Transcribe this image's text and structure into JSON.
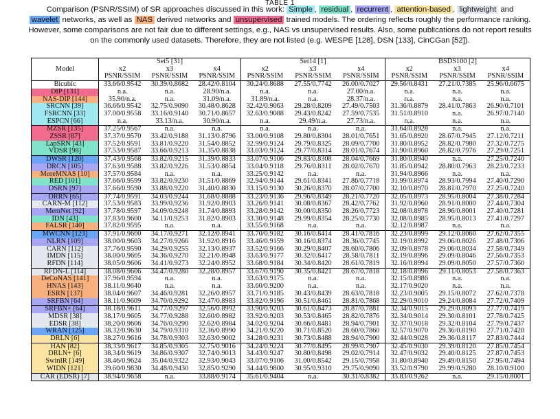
{
  "caption": {
    "table_label": "TABLE 1",
    "line1_pre": "Comparison (PSNR/SSIM) of SR approaches discussed in this work:",
    "tags": [
      {
        "label": "Simple",
        "color": "#9ee8f2"
      },
      {
        "label": "residual",
        "color": "#7fe3c9"
      },
      {
        "label": "recurrent",
        "color": "#a6a6f2"
      },
      {
        "label": "attention-based",
        "color": "#fbe3a0"
      },
      {
        "label": "lightweight",
        "color": "#e2e8ee"
      }
    ],
    "and1": "and",
    "wavelet": {
      "label": "wavelet",
      "color": "#6aa4f4"
    },
    "networks_as_well_as": "networks, as well as",
    "nas": {
      "label": "NAS",
      "color": "#f9b07f"
    },
    "derived_and": "derived networks and",
    "unsupervised": {
      "label": "unsupervised",
      "color": "#f16b8f"
    },
    "line2_post": "trained models. The ordering reflects roughly the performance ranking.",
    "line3": "However, some comparisons are not fair due to different settings, e.g., NAS vs unsupervised results. Also, some publications do not report results",
    "line4": "on the commonly used datasets. Therefore, they are not listed (e.g. WESPE [128], DSN [133], CinCGan [52])."
  },
  "table": {
    "model_header": "Model",
    "datasets": [
      "Set5 [31]",
      "Set14 [1]",
      "BSDS100 [2]"
    ],
    "scales": [
      "x2",
      "x3",
      "x4"
    ],
    "metric": "PSNR/SSIM",
    "colors": {
      "simple": "#9ee8f2",
      "residual": "#7fe3c9",
      "recurrent": "#a6a6f2",
      "attention": "#fbe3a0",
      "lightweight": "#e2e8ee",
      "wavelet": "#6aa4f4",
      "nas": "#f9b07f",
      "unsupervised": "#f16b8f",
      "none": "#ffffff"
    },
    "rows": [
      {
        "model": "Bicubic",
        "cat": "none",
        "sep": false,
        "vals": [
          "33.66/0.9542",
          "30.39/0.8682",
          "28.42/0.8104",
          "30.24/0.8688",
          "27.55/0.7742",
          "26.00/0.7027",
          "29.56/0.8431",
          "27.21/0.7385",
          "25.96/0.6675"
        ]
      },
      {
        "model": "DIP [131]",
        "cat": "unsupervised",
        "sep": false,
        "vals": [
          "n.a.",
          "n.a.",
          "28.90/n.a.",
          "n.a.",
          "n.a.",
          "27.00/n.a.",
          "n.a.",
          "n.a.",
          "n.a."
        ]
      },
      {
        "model": "NAS-DIP [144]",
        "cat": "nas",
        "sep": false,
        "vals": [
          "35.90/n.a.",
          "n.a.",
          "31.09/n.a.",
          "31.89/n.a.",
          "n.a.",
          "28.37/n.a.",
          "n.a.",
          "n.a.",
          "n.a."
        ]
      },
      {
        "model": "SRCNN [39]",
        "cat": "simple",
        "sep": false,
        "vals": [
          "36.66/0.9542",
          "32.75/0.9090",
          "30.48/0.8628",
          "32.42/0.9063",
          "29.28/0.8209",
          "27.49/0.7503",
          "31.36/0.8879",
          "28.41/0.7863",
          "26.90/0.7101"
        ]
      },
      {
        "model": "FSRCNN [33]",
        "cat": "simple",
        "sep": false,
        "vals": [
          "37.00/0.9558",
          "33.16/0.9140",
          "30.71/0.8657",
          "32.63/0.9088",
          "29.43/0.8242",
          "27.59/0.7535",
          "31.51/0.8910",
          "n.a.",
          "26.97/0.7140"
        ]
      },
      {
        "model": "ESPCN [66]",
        "cat": "simple",
        "sep": false,
        "vals": [
          "n.a.",
          "33.13/n.a.",
          "30.90/n.a.",
          "n.a.",
          "29.49/n.a.",
          "27.73/n.a.",
          "n.a.",
          "n.a.",
          "n.a."
        ]
      },
      {
        "model": "MZSR [135]",
        "cat": "unsupervised",
        "sep": true,
        "vals": [
          "37.25/0.9567",
          "n.a.",
          "n.a.",
          "n.a.",
          "n.a.",
          "n.a.",
          "31.64/0.8928",
          "n.a.",
          "n.a."
        ]
      },
      {
        "model": "ZSSR [87]",
        "cat": "unsupervised",
        "sep": false,
        "vals": [
          "37.37/0.9570",
          "33.42/0.9188",
          "31.13/0.8796",
          "33.00/0.9108",
          "29.80/0.8304",
          "28.01/0.7651",
          "31.65/0.8920",
          "28.67/0.7945",
          "27.12/0.7211"
        ]
      },
      {
        "model": "LapSRN [43]",
        "cat": "residual",
        "sep": false,
        "vals": [
          "37.52/0.9591",
          "33.81/0.9220",
          "31.54/0.8852",
          "32.99/0.9124",
          "29.79/0.8325",
          "28.09/0.7700",
          "31.80/0.8952",
          "28.82/0.7980",
          "27.32/0.7275"
        ]
      },
      {
        "model": "VDSR [98]",
        "cat": "residual",
        "sep": false,
        "vals": [
          "37.53/0.9587",
          "33.66/0.9213",
          "31.35/0.8838",
          "33.03/0.9124",
          "29.77/0.8314",
          "28.01/0.7674",
          "31.90/0.8960",
          "28.82/0.7976",
          "27.29/0.7251"
        ]
      },
      {
        "model": "DWSR [120]",
        "cat": "wavelet",
        "sep": true,
        "vals": [
          "37.43/0.9568",
          "33.82/0.9215",
          "31.39/0.8833",
          "33.07/0.9106",
          "29.83/0.8308",
          "28.04/0.7669",
          "31.80/0.8940",
          "n.a.",
          "27.25/0.7240"
        ]
      },
      {
        "model": "DRCN [105]",
        "cat": "recurrent",
        "sep": false,
        "vals": [
          "37.63/0.9588",
          "33.82/0.9226",
          "31.53/0.8854",
          "33.04/0.9118",
          "29.76/0.8311",
          "28.02/0.7670",
          "31.85/0.8942",
          "28.80/0.7963",
          "28.23/0.7233"
        ]
      },
      {
        "model": "MoreMNAS [10]",
        "cat": "nas",
        "sep": false,
        "vals": [
          "37.57/0.9584",
          "n.a.",
          "n.a.",
          "33.25/0.9142",
          "n.a.",
          "n.a.",
          "31.94/0.8966",
          "n.a.",
          "n.a."
        ]
      },
      {
        "model": "RED [101]",
        "cat": "residual",
        "sep": false,
        "vals": [
          "37.66/0.9599",
          "33.82/0.9230",
          "31.51/0.8869",
          "32.94/0.9144",
          "29.61/0.8341",
          "27.86/0.7718",
          "31.99/0.8974",
          "28.93/0.7994",
          "27.40/0.7290"
        ]
      },
      {
        "model": "DSRN [97]",
        "cat": "recurrent",
        "sep": false,
        "vals": [
          "37.66/0.9590",
          "33.88/0.9220",
          "31.40/0.8830",
          "33.15/0.9130",
          "30.26/0.8370",
          "28.07/0.7700",
          "32.10/0.8970",
          "28.81/0.7970",
          "27.25/0.7240"
        ]
      },
      {
        "model": "DRRN [65]",
        "cat": "recurrent",
        "sep": true,
        "vals": [
          "37.74/0.9591",
          "34.03/0.9244",
          "31.68/0.8888",
          "33.23/0.9136",
          "29.96/0.8349",
          "28.21/0.7720",
          "32.05/0.8973",
          "28.95/0.8004",
          "27.38/0.7284"
        ]
      },
      {
        "model": "CARN-M [112]",
        "cat": "lightweight",
        "sep": false,
        "vals": [
          "37.53/0.9583",
          "33.99/0.9236",
          "31.92/0.8903",
          "33.26/0.9141",
          "30.08/0.8367",
          "28.42/0.7762",
          "31.92/0.8960",
          "28.91/0.8000",
          "27.44/0.7304"
        ]
      },
      {
        "model": "MemNet [92]",
        "cat": "recurrent",
        "sep": false,
        "vals": [
          "37.78/0.9597",
          "34.09/0.9248",
          "31.74/0.8893",
          "33.28/0.9142",
          "30.00/0.8350",
          "28.26/0.7723",
          "32.08/0.8978",
          "28.96/0.8001",
          "27.40/0.7281"
        ]
      },
      {
        "model": "IDN [43]",
        "cat": "residual",
        "sep": false,
        "vals": [
          "37.83/0.9600",
          "34.11/0.9253",
          "31.82/0.8903",
          "33.30/0.9148",
          "29.99/0.8354",
          "28.25/0.7730",
          "32.08/0.8985",
          "28.95/0.8013",
          "27.41/0.7297"
        ]
      },
      {
        "model": "FALSR [140]",
        "cat": "nas",
        "sep": false,
        "vals": [
          "37.82/0.9595",
          "n.a.",
          "n.a.",
          "33.55/0.9168",
          "n.a.",
          "n.a.",
          "32.12/0.8987",
          "n.a.",
          "n.a."
        ]
      },
      {
        "model": "MWCNN [123]",
        "cat": "wavelet",
        "sep": true,
        "vals": [
          "37.91/0.9600",
          "34.17/0.9271",
          "32.12/0.8941",
          "33.70/0.9182",
          "30.16/0.8414",
          "28.41/0.7816",
          "32.23/0.8999",
          "29.12/0.8060",
          "27.62/0.7355"
        ]
      },
      {
        "model": "NLRN [109]",
        "cat": "recurrent",
        "sep": false,
        "vals": [
          "38.00/0.9603",
          "34.27/0.9266",
          "31.92/0.8916",
          "33.46/0.9159",
          "30.16/0.8374",
          "28.36/0.7745",
          "32.19/0.8992",
          "29.06/0.8026",
          "27.48/0.7306"
        ]
      },
      {
        "model": "CARN [112]",
        "cat": "lightweight",
        "sep": false,
        "vals": [
          "37.76/0.9590",
          "34.29/0.9255",
          "32.13/0.8937",
          "33.52/0.9166",
          "30.29/0.8407",
          "28.60/0.7806",
          "32.09/0.8978",
          "29.06/0.8034",
          "27.58/0.7349"
        ]
      },
      {
        "model": "IMDN [115]",
        "cat": "lightweight",
        "sep": false,
        "vals": [
          "38.00/0.9605",
          "34.36/0.9270",
          "32.21/0.8948",
          "33.63/0.9177",
          "30.32/0.8417",
          "28.58/0.7811",
          "32.19/0.8996",
          "29.09/0.8046",
          "27.56/0.7353"
        ]
      },
      {
        "model": "RFDN [114]",
        "cat": "lightweight",
        "sep": false,
        "vals": [
          "38.05/0.9606",
          "34.41/0.9273",
          "32.24/0.8952",
          "33.68/0.9184",
          "30.34/0.8420",
          "28.61/0.7819",
          "32.16/0.8994",
          "29.09/0.8050",
          "27.57/0.7360"
        ]
      },
      {
        "model": "RFDN-L [114]",
        "cat": "lightweight",
        "sep": true,
        "vals": [
          "38.08/0.9606",
          "34.47/0.9280",
          "32.28/0.8957",
          "33.67/0.9190",
          "30.35/0.8421",
          "28.67/0.7818",
          "32.18/0.8996",
          "29.11/0.8053",
          "27.58/0.7363"
        ]
      },
      {
        "model": "DeCoNAS [141]",
        "cat": "nas",
        "sep": false,
        "vals": [
          "37.96/0.9594",
          "n.a.",
          "n.a.",
          "33.63/0.9175",
          "n.a.",
          "n.a.",
          "32.15/0.8986",
          "n.a.",
          "n.a."
        ]
      },
      {
        "model": "HNAS [143]",
        "cat": "nas",
        "sep": false,
        "vals": [
          "38.11/0.9640",
          "n.a.",
          "n.a.",
          "33.60/0.9200",
          "n.a.",
          "n.a.",
          "32.17/0.9020",
          "n.a.",
          "n.a."
        ]
      },
      {
        "model": "ESRN [137]",
        "cat": "nas",
        "sep": false,
        "vals": [
          "38.04/0.9607",
          "34.46/0.9281",
          "32.26/0.8957",
          "33.71/0.9185",
          "30.43/0.8439",
          "28.63/0.7818",
          "32.23/0.9005",
          "29.15/0.8072",
          "27.62/0.7378"
        ]
      },
      {
        "model": "SRFBN [64]",
        "cat": "recurrent",
        "sep": false,
        "vals": [
          "38.11/0.9609",
          "34.70/0.9292",
          "32.47/0.8983",
          "33.82/0.9196",
          "30.51/0.8461",
          "28.81/0.7868",
          "32.29/0.9010",
          "29.24/0.8084",
          "27.72/0.7409"
        ]
      },
      {
        "model": "SRFBN+ [64]",
        "cat": "recurrent",
        "sep": true,
        "vals": [
          "38.18/0.9611",
          "34.77/0.9297",
          "32.56/0.8992",
          "33.90/0.9203",
          "30.61/0.8473",
          "28.87/0.7881",
          "32.34/0.9015",
          "29.29/0.8093",
          "27.77/0.7419"
        ]
      },
      {
        "model": "MDSR [38]",
        "cat": "lightweight",
        "sep": false,
        "vals": [
          "38.17/0.9605",
          "34.77/0.9288",
          "32.60/0.8982",
          "33.92/0.9203",
          "30.53/0.8465",
          "28.82/0.7876",
          "32.34/0.9014",
          "29.30/0.8101",
          "27.78/0.7425"
        ]
      },
      {
        "model": "EDSR [38]",
        "cat": "lightweight",
        "sep": false,
        "vals": [
          "38.20/0.9606",
          "34.76/0.9290",
          "32.62/0.8984",
          "34.02/0.9204",
          "30.66/0.8481",
          "28.94/0.7901",
          "32.37/0.9018",
          "29.32/0.8104",
          "27.79/0.7437"
        ]
      },
      {
        "model": "WRAN [125]",
        "cat": "wavelet",
        "sep": false,
        "vals": [
          "38.32/0.9630",
          "34.79/0.9310",
          "32.36/0.8990",
          "34.21/0.9220",
          "30.71/0.8520",
          "28.60/0.7860",
          "32.57/0.9070",
          "29.36/0.8190",
          "27.71/0.7420"
        ]
      },
      {
        "model": "DRLN [6]",
        "cat": "attention",
        "sep": false,
        "vals": [
          "38.27/0.9616",
          "34.78/0.9303",
          "32.63/0.9002",
          "34.28/0.9231",
          "30.73/0.8488",
          "28.94/0.7900",
          "32.44/0.9028",
          "29.36/0.8117",
          "27.83/0.7444"
        ]
      },
      {
        "model": "HAN [82]",
        "cat": "attention",
        "sep": true,
        "vals": [
          "38.33/0.9617",
          "34.85/0.9305",
          "32.75/0.9016",
          "34.24/0.9224",
          "30.77/0.8495",
          "28.99/0.7907",
          "32.45/0.9030",
          "29.39/0.8120",
          "27.85/0.7454"
        ]
      },
      {
        "model": "DRLN+ [6]",
        "cat": "attention",
        "sep": false,
        "vals": [
          "38.34/0.9619",
          "34.86/0.9307",
          "32.74/0.9013",
          "34.43/0.9247",
          "30.80/0.8498",
          "29.02/0.7914",
          "32.47/0.9032",
          "29.40/0.8125",
          "27.87/0.7453"
        ]
      },
      {
        "model": "SwinIR [149]",
        "cat": "attention",
        "sep": false,
        "vals": [
          "38.46/0.9624",
          "35.04/0.9322",
          "32.93/0.9043",
          "33.07/0.9106",
          "31.00/0.8542",
          "29.15/0.7958",
          "31.80/0.8940",
          "29.49/0.8150",
          "27.95/0.7494"
        ]
      },
      {
        "model": "WIDN [121]",
        "cat": "attention",
        "sep": false,
        "vals": [
          "39.60/0.9830",
          "34.48/0.9430",
          "32.85/0.9290",
          "34.44/0.9800",
          "30.95/0.9310",
          "29.75/0.9090",
          "33.52/0.9790",
          "29.99/0.9280",
          "28.10/0.9100"
        ]
      },
      {
        "model": "CAR (EDSR) [7]",
        "cat": "lightweight",
        "sep": true,
        "vals": [
          "38.94/0.9658",
          "n.a.",
          "33.88/0.9174",
          "35.61/0.9404",
          "n.a.",
          "30.31/0.8382",
          "33.83/0.9262",
          "n.a.",
          "29.15/0.8001"
        ]
      }
    ]
  }
}
